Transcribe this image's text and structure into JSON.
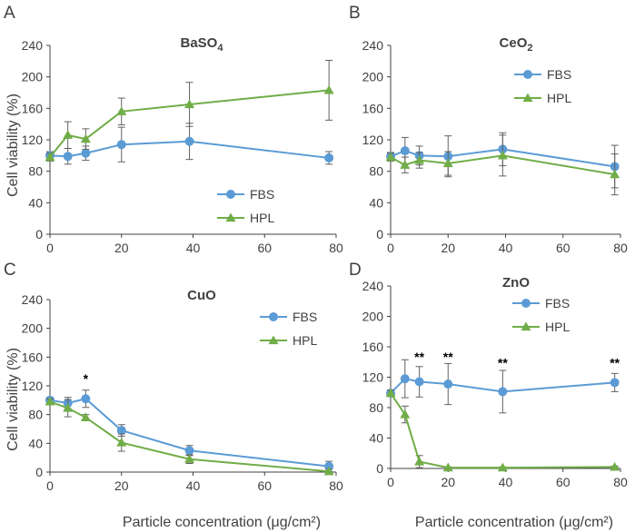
{
  "figure": {
    "x_axis_label_left": "Particle concentration (μg/cm²)",
    "x_axis_label_right": "Particle concentration (μg/cm²)",
    "y_axis_label_top": "Cell viability (%)",
    "y_axis_label_bottom": "Cell viability (%)"
  },
  "colors": {
    "fbs": "#5b9bd5",
    "hpl": "#70ad47",
    "axis": "#404040"
  },
  "chart_data": [
    {
      "panel": "A",
      "title": "BaSO",
      "title_sub": "4",
      "type": "line",
      "xlim": [
        0,
        80
      ],
      "ylim": [
        0,
        240
      ],
      "xticks": [
        "0",
        "20",
        "40",
        "60",
        "80"
      ],
      "yticks": [
        "0",
        "40",
        "80",
        "120",
        "160",
        "200",
        "240"
      ],
      "legend_position": "bottom-right",
      "series": [
        {
          "name": "FBS",
          "marker": "circle",
          "x": [
            0,
            5,
            10,
            20,
            39,
            78
          ],
          "y": [
            100,
            99,
            103,
            114,
            118,
            97
          ],
          "err": [
            5,
            10,
            9,
            22,
            23,
            8
          ]
        },
        {
          "name": "HPL",
          "marker": "triangle",
          "x": [
            0,
            5,
            10,
            20,
            39,
            78
          ],
          "y": [
            98,
            126,
            121,
            156,
            165,
            183
          ],
          "err": [
            5,
            17,
            13,
            17,
            28,
            38
          ]
        }
      ],
      "annotations": []
    },
    {
      "panel": "B",
      "title": "CeO",
      "title_sub": "2",
      "type": "line",
      "xlim": [
        0,
        80
      ],
      "ylim": [
        0,
        240
      ],
      "xticks": [
        "0",
        "20",
        "40",
        "60",
        "80"
      ],
      "yticks": [
        "0",
        "40",
        "80",
        "120",
        "160",
        "200",
        "240"
      ],
      "legend_position": "top-right",
      "series": [
        {
          "name": "FBS",
          "marker": "circle",
          "x": [
            0,
            5,
            10,
            20,
            39,
            78
          ],
          "y": [
            99,
            106,
            100,
            99,
            108,
            86
          ],
          "err": [
            5,
            17,
            12,
            26,
            21,
            27
          ]
        },
        {
          "name": "HPL",
          "marker": "triangle",
          "x": [
            0,
            5,
            10,
            20,
            39,
            78
          ],
          "y": [
            98,
            88,
            94,
            90,
            100,
            76
          ],
          "err": [
            5,
            10,
            10,
            15,
            26,
            26
          ]
        }
      ],
      "annotations": []
    },
    {
      "panel": "C",
      "title": "CuO",
      "title_sub": "",
      "type": "line",
      "xlim": [
        0,
        80
      ],
      "ylim": [
        0,
        240
      ],
      "xticks": [
        "0",
        "20",
        "40",
        "60",
        "80"
      ],
      "yticks": [
        "0",
        "40",
        "80",
        "120",
        "160",
        "200",
        "240"
      ],
      "legend_position": "top-right",
      "series": [
        {
          "name": "FBS",
          "marker": "circle",
          "x": [
            0,
            5,
            10,
            20,
            39,
            78
          ],
          "y": [
            100,
            96,
            102,
            58,
            30,
            8
          ],
          "err": [
            4,
            8,
            12,
            8,
            7,
            7
          ]
        },
        {
          "name": "HPL",
          "marker": "triangle",
          "x": [
            0,
            5,
            10,
            20,
            39,
            78
          ],
          "y": [
            98,
            89,
            76,
            41,
            18,
            1
          ],
          "err": [
            4,
            12,
            4,
            12,
            6,
            3
          ]
        }
      ],
      "annotations": [
        {
          "text": "*",
          "x": 10,
          "y": 124
        }
      ]
    },
    {
      "panel": "D",
      "title": "ZnO",
      "title_sub": "",
      "type": "line",
      "xlim": [
        0,
        80
      ],
      "ylim": [
        0,
        240
      ],
      "xticks": [
        "0",
        "20",
        "40",
        "60",
        "80"
      ],
      "yticks": [
        "0",
        "40",
        "80",
        "120",
        "160",
        "200",
        "240"
      ],
      "legend_position": "top-right",
      "series": [
        {
          "name": "FBS",
          "marker": "circle",
          "x": [
            0,
            5,
            10,
            20,
            39,
            78
          ],
          "y": [
            99,
            118,
            114,
            111,
            101,
            113
          ],
          "err": [
            4,
            25,
            20,
            27,
            28,
            12
          ]
        },
        {
          "name": "HPL",
          "marker": "triangle",
          "x": [
            0,
            5,
            10,
            20,
            39,
            78
          ],
          "y": [
            99,
            71,
            9,
            1,
            1,
            2
          ],
          "err": [
            4,
            11,
            8,
            1,
            1,
            1
          ]
        }
      ],
      "annotations": [
        {
          "text": "**",
          "x": 10,
          "y": 141
        },
        {
          "text": "**",
          "x": 20,
          "y": 141
        },
        {
          "text": "**",
          "x": 39,
          "y": 133
        },
        {
          "text": "**",
          "x": 78,
          "y": 133
        }
      ]
    }
  ]
}
